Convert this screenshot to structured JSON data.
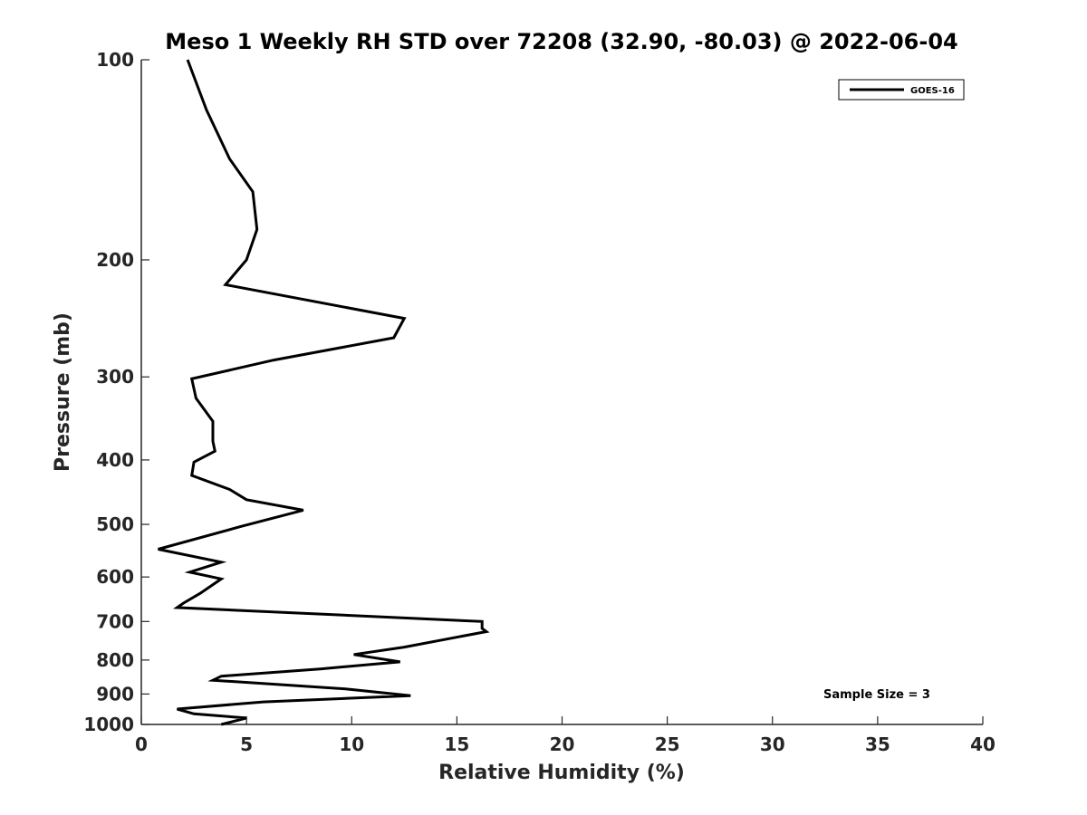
{
  "chart_data": {
    "type": "line",
    "title": "Meso 1 Weekly RH STD over 72208 (32.90, -80.03) @ 2022-06-04",
    "xlabel": "Relative Humidity (%)",
    "ylabel": "Pressure (mb)",
    "xlim": [
      0,
      40
    ],
    "ylim": [
      100,
      1000
    ],
    "y_scale": "log",
    "y_reversed": true,
    "grid": false,
    "x_ticks": [
      "0",
      "5",
      "10",
      "15",
      "20",
      "25",
      "30",
      "35",
      "40"
    ],
    "y_ticks": [
      "100",
      "200",
      "300",
      "400",
      "500",
      "600",
      "700",
      "800",
      "900",
      "1000"
    ],
    "legend": {
      "position": "top-right",
      "entries": [
        "GOES-16"
      ]
    },
    "annotation": "Sample Size = 3",
    "series": [
      {
        "name": "GOES-16",
        "color": "#000000",
        "points": [
          [
            2.2,
            100
          ],
          [
            3.1,
            119
          ],
          [
            4.2,
            141
          ],
          [
            5.3,
            158
          ],
          [
            5.5,
            180
          ],
          [
            5.0,
            200
          ],
          [
            4.0,
            218
          ],
          [
            12.5,
            245
          ],
          [
            12.0,
            262
          ],
          [
            6.3,
            283
          ],
          [
            2.4,
            302
          ],
          [
            2.6,
            323
          ],
          [
            3.4,
            350
          ],
          [
            3.4,
            375
          ],
          [
            3.5,
            388
          ],
          [
            2.5,
            403
          ],
          [
            2.4,
            422
          ],
          [
            4.2,
            443
          ],
          [
            5.0,
            459
          ],
          [
            7.7,
            476
          ],
          [
            4.7,
            504
          ],
          [
            0.8,
            545
          ],
          [
            3.8,
            570
          ],
          [
            2.3,
            590
          ],
          [
            3.8,
            604
          ],
          [
            2.8,
            635
          ],
          [
            2.0,
            657
          ],
          [
            1.7,
            667
          ],
          [
            16.2,
            700
          ],
          [
            16.2,
            717
          ],
          [
            16.4,
            725
          ],
          [
            12.5,
            765
          ],
          [
            10.1,
            785
          ],
          [
            12.3,
            805
          ],
          [
            8.5,
            825
          ],
          [
            3.8,
            846
          ],
          [
            3.4,
            858
          ],
          [
            9.7,
            884
          ],
          [
            12.8,
            905
          ],
          [
            5.8,
            925
          ],
          [
            1.7,
            948
          ],
          [
            2.5,
            964
          ],
          [
            5.0,
            978
          ],
          [
            3.8,
            1000
          ]
        ]
      }
    ]
  }
}
